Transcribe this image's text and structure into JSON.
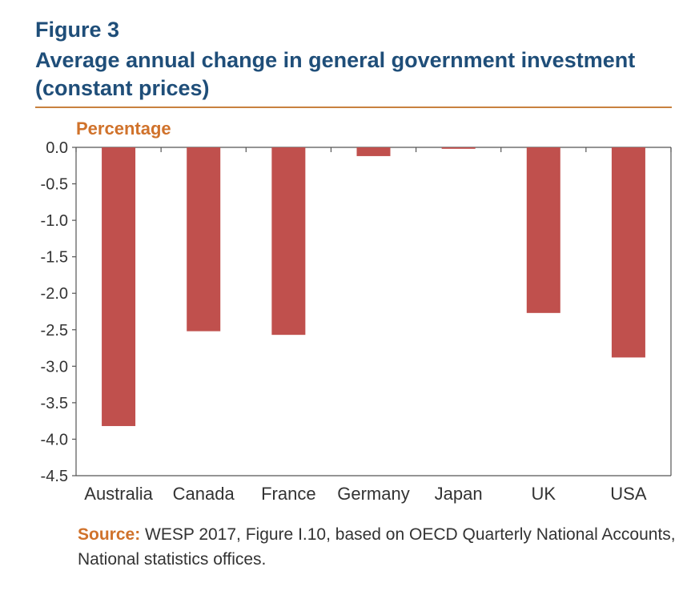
{
  "header": {
    "figure_label": "Figure 3",
    "title": "Average annual change in general government investment (constant prices)"
  },
  "chart_data": {
    "type": "bar",
    "ylabel": "Percentage",
    "categories": [
      "Australia",
      "Canada",
      "France",
      "Germany",
      "Japan",
      "UK",
      "USA"
    ],
    "values": [
      -3.82,
      -2.52,
      -2.57,
      -0.12,
      -0.02,
      -2.27,
      -2.88
    ],
    "ylim": [
      -4.5,
      0.0
    ],
    "yticks": [
      "0.0",
      "-0.5",
      "-1.0",
      "-1.5",
      "-2.0",
      "-2.5",
      "-3.0",
      "-3.5",
      "-4.0",
      "-4.5"
    ],
    "grid": false,
    "bar_color": "#c0504d"
  },
  "footer": {
    "source_label": "Source:",
    "source_text": " WESP 2017, Figure I.10, based on OECD Quarterly National Accounts, National statistics offices."
  },
  "colors": {
    "title": "#1f4e79",
    "accent": "#d0722b",
    "rule": "#c8813f"
  }
}
